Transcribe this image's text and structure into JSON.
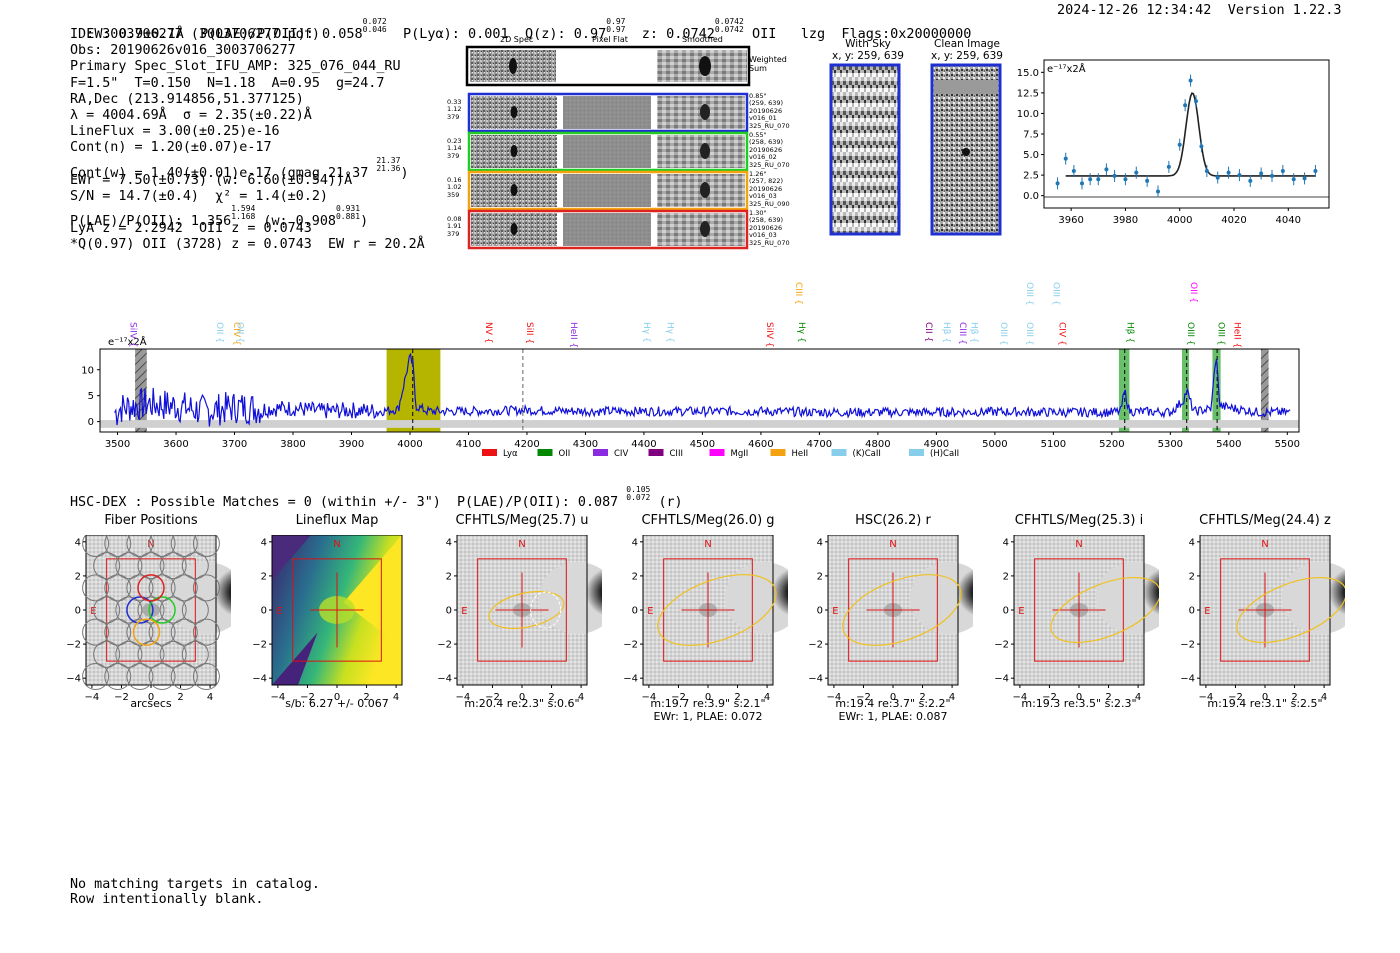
{
  "header": {
    "ew": "EW: 0.9±0.1Å",
    "plae_label": "P(LAE)/P(OII): 0.058",
    "plae_hi": "0.072",
    "plae_lo": "0.046",
    "plya": "P(Lyα): 0.001",
    "qz_label": "Q(z): 0.97",
    "qz_hi": "0.97",
    "qz_lo": "0.97",
    "z_label": "z: 0.0742",
    "z_hi": "0.0742",
    "z_lo": "0.0742",
    "z_line": "OII",
    "tag": "lzg",
    "flags": "Flags:0x20000000",
    "timestamp": "2024-12-26 12:34:42",
    "version": "Version 1.22.3"
  },
  "info": {
    "id": "ID: 3003706277 (3003706277.pdf)",
    "obs": "Obs: 20190626v016_3003706277",
    "primary": "Primary Spec_Slot_IFU_AMP: 325_076_044_RU",
    "seeing": "F=1.5\"  T=0.150  N=1.18  A=0.95  g=24.7",
    "radec": "RA,Dec (213.914856,51.377125)",
    "lambda": "λ = 4004.69Å  σ = 2.35(±0.22)Å",
    "lineflux": "LineFlux = 3.00(±0.25)e-16",
    "contn": "Cont(n) = 1.20(±0.07)e-17",
    "contw": "Cont(w) = 1.40(±0.01)e-17 (gmag 21.37",
    "gmag_hi": "21.37",
    "gmag_lo": "21.36",
    "ewr": "EWr = 7.50(±0.73) (w: 6.60(±0.54))Å",
    "sn": "S/N = 14.7(±0.4)  χ² = 1.4(±0.2)",
    "plae": "P(LAE)/P(OII): 1.356",
    "plae_hi": "1.594",
    "plae_lo": "1.168",
    "plae_w": "(w: 0.908",
    "plae_w_hi": "0.931",
    "plae_w_lo": "0.881",
    "lya": "LyA z = 2.2942  OII z = 0.0743",
    "best": "*Q(0.97) OII (3728) z = 0.0743  EW r = 20.2Å"
  },
  "cutouts": {
    "col_2d": "2D Spec",
    "col_flat": "Pixel Flat",
    "col_smooth": "Smoothed",
    "weighted": "Weighted Sum",
    "rows": [
      {
        "w1": "0.33",
        "w2": "1.12",
        "w3": "379",
        "color": "#1f2fd0",
        "meta": "0.85\"\n(259, 639)\n20190626\nv016_01\n325_RU_070"
      },
      {
        "w1": "0.23",
        "w2": "1.14",
        "w3": "379",
        "color": "#22cc22",
        "meta": "0.55\"\n(258, 639)\n20190626\nv016_02\n325_RU_070"
      },
      {
        "w1": "0.16",
        "w2": "1.02",
        "w3": "359",
        "color": "#f2a30f",
        "meta": "1.26\"\n(257, 822)\n20190626\nv016_03\n325_RU_090"
      },
      {
        "w1": "0.08",
        "w2": "1.91",
        "w3": "379",
        "color": "#dd2222",
        "meta": "1.30\"\n(258, 639)\n20190626\nv016_03\n325_RU_070"
      }
    ]
  },
  "stamps": {
    "with_sky": "With Sky",
    "with_sky_xy": "x, y: 259, 639",
    "clean": "Clean Image",
    "clean_xy": "x, y: 259, 639"
  },
  "fit_plot": {
    "unit": "e⁻¹⁷x2Å",
    "yticks": [
      "15.0",
      "12.5",
      "10.0",
      "7.5",
      "5.0",
      "2.5",
      "0.0"
    ],
    "xticks": [
      "3960",
      "3980",
      "4000",
      "4020",
      "4040"
    ]
  },
  "full_spectrum": {
    "unit": "e⁻¹⁷x2Å",
    "yticks": [
      "10",
      "5",
      "0"
    ],
    "xticks": [
      "3500",
      "3600",
      "3700",
      "3800",
      "3900",
      "4000",
      "4100",
      "4200",
      "4300",
      "4400",
      "4500",
      "4600",
      "4700",
      "4800",
      "4900",
      "5000",
      "5100",
      "5200",
      "5300",
      "5400",
      "5500"
    ],
    "lines": [
      {
        "name": "SiIV",
        "wave": 3517,
        "color": "#8a2be2",
        "row": 1
      },
      {
        "name": "OII",
        "wave": 3665,
        "color": "#87ceeb",
        "row": 1
      },
      {
        "name": "CIV",
        "wave": 3694,
        "color": "#f2a30f",
        "row": 1
      },
      {
        "name": "OII",
        "wave": 3700,
        "color": "#87ceeb",
        "row": 1
      },
      {
        "name": "NV",
        "wave": 4125,
        "color": "#ee1111",
        "row": 1
      },
      {
        "name": "SiII",
        "wave": 4195,
        "color": "#ee1111",
        "row": 1
      },
      {
        "name": "HeII",
        "wave": 4270,
        "color": "#8a2be2",
        "row": 1
      },
      {
        "name": "Hγ",
        "wave": 4395,
        "color": "#87ceeb",
        "row": 1
      },
      {
        "name": "Hγ",
        "wave": 4435,
        "color": "#87ceeb",
        "row": 1
      },
      {
        "name": "SiIV",
        "wave": 4605,
        "color": "#ee1111",
        "row": 1
      },
      {
        "name": "Hγ",
        "wave": 4660,
        "color": "#008800",
        "row": 1
      },
      {
        "name": "CIII",
        "wave": 4655,
        "color": "#f2a30f",
        "row": 0
      },
      {
        "name": "CII",
        "wave": 4877,
        "color": "#800080",
        "row": 1
      },
      {
        "name": "Hβ",
        "wave": 4908,
        "color": "#87ceeb",
        "row": 1
      },
      {
        "name": "CIII",
        "wave": 4935,
        "color": "#8a2be2",
        "row": 1
      },
      {
        "name": "Hβ",
        "wave": 4955,
        "color": "#87ceeb",
        "row": 1
      },
      {
        "name": "OIII",
        "wave": 5005,
        "color": "#87ceeb",
        "row": 1
      },
      {
        "name": "OIII",
        "wave": 5050,
        "color": "#87ceeb",
        "row": 1
      },
      {
        "name": "OIII",
        "wave": 5050,
        "color": "#87ceeb",
        "row": 0
      },
      {
        "name": "OIII",
        "wave": 5095,
        "color": "#87ceeb",
        "row": 0
      },
      {
        "name": "CIV",
        "wave": 5105,
        "color": "#ee1111",
        "row": 1
      },
      {
        "name": "Hβ",
        "wave": 5222,
        "color": "#008800",
        "row": 1
      },
      {
        "name": "OIII",
        "wave": 5325,
        "color": "#008800",
        "row": 1
      },
      {
        "name": "OII",
        "wave": 5330,
        "color": "#ff00ff",
        "row": 0
      },
      {
        "name": "OIII",
        "wave": 5377,
        "color": "#008800",
        "row": 1
      },
      {
        "name": "HeII",
        "wave": 5405,
        "color": "#ee1111",
        "row": 1
      }
    ],
    "legend": [
      {
        "name": "Lyα",
        "color": "#ee1111"
      },
      {
        "name": "OII",
        "color": "#008800"
      },
      {
        "name": "CIV",
        "color": "#8a2be2"
      },
      {
        "name": "CIII",
        "color": "#800080"
      },
      {
        "name": "MgII",
        "color": "#ff00ff"
      },
      {
        "name": "HeII",
        "color": "#f2a30f"
      },
      {
        "name": "(K)CaII",
        "color": "#87ceeb"
      },
      {
        "name": "(H)CaII",
        "color": "#87ceeb"
      }
    ]
  },
  "chart_data": {
    "type": "line",
    "title": "",
    "xlabel": "",
    "ylabel": "e⁻¹⁷x2Å",
    "xlim": [
      3470,
      5520
    ],
    "ylim": [
      -2,
      14
    ],
    "x": [
      3500,
      3550,
      3600,
      3650,
      3700,
      3750,
      3800,
      3850,
      3900,
      3950,
      3980,
      4000,
      4005,
      4010,
      4030,
      4100,
      4200,
      4300,
      4400,
      4500,
      4600,
      4700,
      4800,
      4900,
      5000,
      5100,
      5200,
      5215,
      5222,
      5230,
      5300,
      5322,
      5328,
      5340,
      5370,
      5378,
      5385,
      5450,
      5520
    ],
    "series": [
      {
        "name": "flux",
        "values": [
          2.5,
          3.5,
          3.0,
          2.0,
          2.8,
          2.5,
          2.6,
          2.0,
          2.2,
          2.0,
          2.4,
          12.5,
          11.0,
          3.0,
          2.0,
          2.0,
          2.2,
          2.0,
          2.0,
          2.0,
          2.0,
          1.8,
          1.8,
          1.8,
          1.9,
          1.8,
          1.8,
          2.0,
          6.0,
          2.0,
          1.8,
          4.0,
          6.0,
          1.9,
          2.5,
          13.0,
          3.0,
          1.8,
          1.8
        ]
      }
    ],
    "inset": {
      "x": [
        3955,
        3958,
        3961,
        3964,
        3967,
        3970,
        3973,
        3976,
        3980,
        3984,
        3988,
        3992,
        3996,
        4000,
        4002,
        4004,
        4006,
        4008,
        4010,
        4014,
        4018,
        4022,
        4026,
        4030,
        4034,
        4038,
        4042,
        4046,
        4050
      ],
      "data": [
        1.5,
        4.5,
        3.0,
        1.5,
        2.0,
        2.0,
        3.2,
        2.4,
        2.0,
        2.8,
        1.8,
        0.5,
        3.5,
        6.2,
        11.0,
        14.0,
        11.5,
        6.0,
        3.0,
        2.2,
        2.8,
        2.5,
        1.8,
        2.7,
        2.4,
        3.0,
        2.0,
        2.1,
        3.0
      ],
      "model_peak": 12.5,
      "model_center": 4004.69,
      "model_sigma": 2.35,
      "model_cont": 2.4,
      "xlim": [
        3950,
        4055
      ],
      "ylim": [
        -1.5,
        16.5
      ]
    }
  },
  "hsc": {
    "line": "HSC-DEX : Possible Matches = 0 (within +/- 3\")  P(LAE)/P(OII): 0.087",
    "hi": "0.105",
    "lo": "0.072",
    "band": "(r)"
  },
  "panels": [
    {
      "title": "Fiber Positions",
      "cap1": "arcsecs",
      "cap2": "",
      "kind": "fibers"
    },
    {
      "title": "Lineflux Map",
      "cap1": "s/b: 6.27 +/- 0.067",
      "cap2": "",
      "kind": "map"
    },
    {
      "title": "CFHTLS/Meg(25.7) u",
      "cap1": "m:20.4  re:2.3\"  s:0.6\"",
      "cap2": "",
      "kind": "img",
      "ell": "small"
    },
    {
      "title": "CFHTLS/Meg(26.0) g",
      "cap1": "m:19.7  re:3.9\"  s:2.1\"",
      "cap2": "EWr: 1, PLAE: 0.072",
      "kind": "img",
      "ell": "big"
    },
    {
      "title": "HSC(26.2) r",
      "cap1": "m:19.4  re:3.7\"  s:2.2\"",
      "cap2": "EWr: 1, PLAE: 0.087",
      "kind": "img",
      "ell": "big"
    },
    {
      "title": "CFHTLS/Meg(25.3) i",
      "cap1": "m:19.3  re:3.5\"  s:2.3\"",
      "cap2": "",
      "kind": "img",
      "ell": "mid"
    },
    {
      "title": "CFHTLS/Meg(24.4) z",
      "cap1": "m:19.4  re:3.1\"  s:2.5\"",
      "cap2": "",
      "kind": "img",
      "ell": "mid"
    }
  ],
  "panel_axis": {
    "ticks": [
      "4",
      "2",
      "0",
      "−2",
      "−4"
    ],
    "xticks": [
      "−4",
      "−2",
      "0",
      "2",
      "4"
    ],
    "north": "N",
    "east": "E"
  },
  "footer": {
    "line1": "No matching targets in catalog.",
    "line2": "Row intentionally blank."
  }
}
